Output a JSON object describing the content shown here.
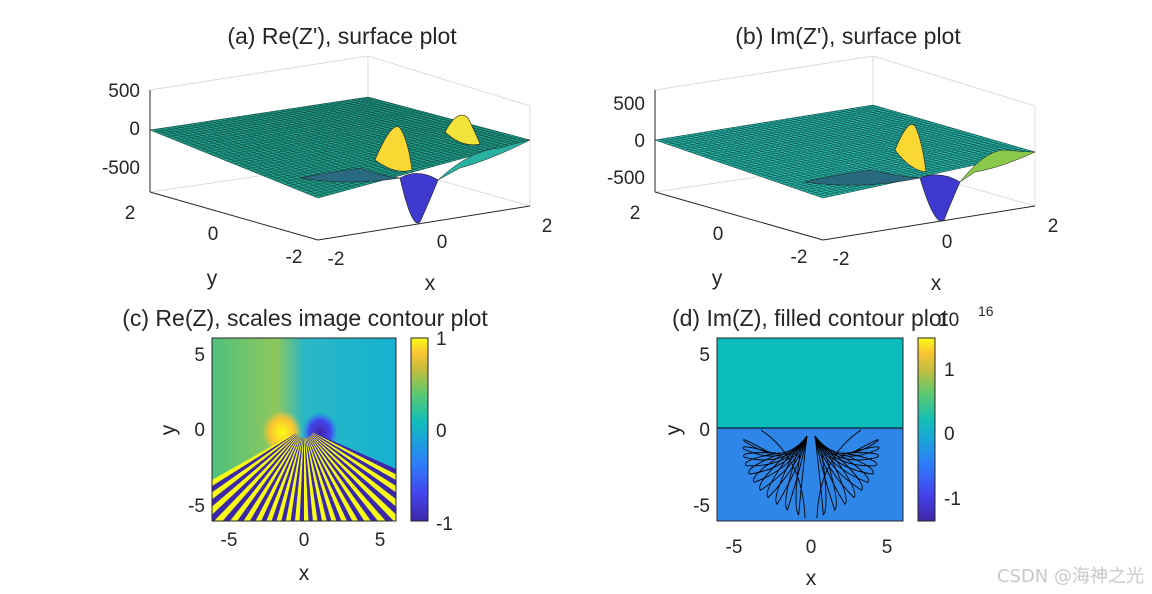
{
  "chart_data": [
    {
      "type": "surface",
      "title": "(a) Re(Z'), surface plot",
      "xlabel": "x",
      "ylabel": "y",
      "zlabel": "",
      "xticks": [
        "-2",
        "0",
        "2"
      ],
      "yticks": [
        "-2",
        "0",
        "2"
      ],
      "zticks": [
        "500",
        "0",
        "-500"
      ],
      "xlim": [
        -2,
        2
      ],
      "ylim": [
        -2,
        2
      ],
      "zlim": [
        -700,
        600
      ],
      "colormap": "parula",
      "grid": true,
      "description_values": {
        "peak_max": 420,
        "peak_min": -650
      }
    },
    {
      "type": "surface",
      "title": "(b) Im(Z'), surface plot",
      "xlabel": "x",
      "ylabel": "y",
      "zlabel": "",
      "xticks": [
        "-2",
        "0",
        "2"
      ],
      "yticks": [
        "-2",
        "0",
        "2"
      ],
      "zticks": [
        "500",
        "0",
        "-500"
      ],
      "xlim": [
        -2,
        2
      ],
      "ylim": [
        -2,
        2
      ],
      "zlim": [
        -700,
        600
      ],
      "colormap": "parula",
      "grid": true,
      "description_values": {
        "peak_max": 420,
        "peak_min": -650
      }
    },
    {
      "type": "heatmap",
      "title": "(c) Re(Z), scales image contour plot",
      "xlabel": "x",
      "ylabel": "y",
      "xticks": [
        "-5",
        "0",
        "5"
      ],
      "yticks": [
        "5",
        "0",
        "-5"
      ],
      "xlim": [
        -6,
        6
      ],
      "ylim": [
        -6,
        6
      ],
      "colorbar": {
        "ticks": [
          "1",
          "0",
          "-1"
        ],
        "range": [
          -1,
          1
        ]
      },
      "colormap": "parula"
    },
    {
      "type": "heatmap",
      "title": "(d) Im(Z), filled contour plot",
      "xlabel": "x",
      "ylabel": "y",
      "xticks": [
        "-5",
        "0",
        "5"
      ],
      "yticks": [
        "5",
        "0",
        "-5"
      ],
      "xlim": [
        -6,
        6
      ],
      "ylim": [
        -6,
        6
      ],
      "colorbar": {
        "ticks": [
          "1",
          "0",
          "-1"
        ],
        "range": [
          -1.5,
          1.5
        ],
        "exponent_base": "10",
        "exponent": "16"
      },
      "colormap": "parula",
      "regions": [
        {
          "name": "upper",
          "value": 0
        },
        {
          "name": "lower",
          "value": -1
        }
      ]
    }
  ],
  "watermark": "CSDN @海神之光",
  "colors": {
    "parula_low": "#3e26a8",
    "parula_mid": "#13beb7",
    "parula_high": "#f9fb15",
    "axis": "#262626"
  }
}
